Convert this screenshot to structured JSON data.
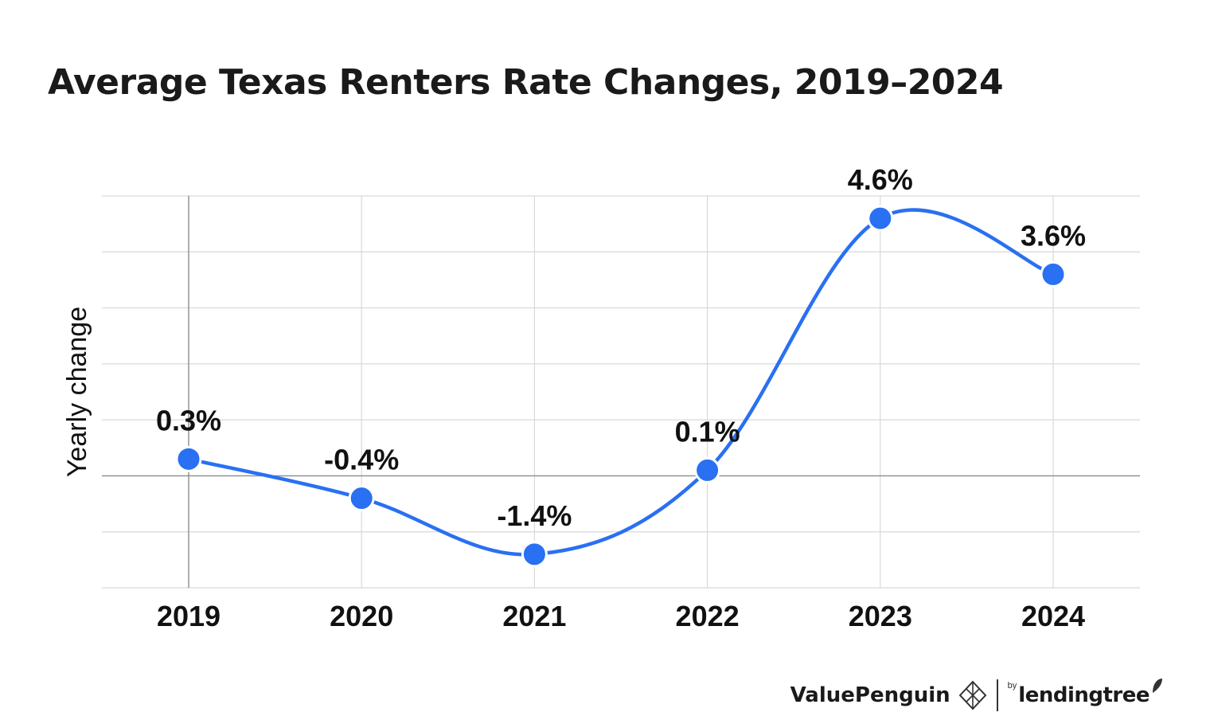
{
  "chart_data": {
    "type": "line",
    "title": "Average Texas Renters Rate Changes, 2019–2024",
    "ylabel": "Yearly change",
    "xlabel": "",
    "categories": [
      "2019",
      "2020",
      "2021",
      "2022",
      "2023",
      "2024"
    ],
    "series": [
      {
        "values": [
          0.3,
          -0.4,
          -1.4,
          0.1,
          4.6,
          3.6
        ],
        "labels": [
          "0.3%",
          "-0.4%",
          "-1.4%",
          "0.1%",
          "4.6%",
          "3.6%"
        ],
        "color": "#2970f2"
      }
    ],
    "ylim": [
      -2,
      5
    ],
    "grid": true,
    "smooth": true
  },
  "branding": {
    "primary": "ValuePenguin",
    "by": "by",
    "partner": "lendingtree"
  }
}
